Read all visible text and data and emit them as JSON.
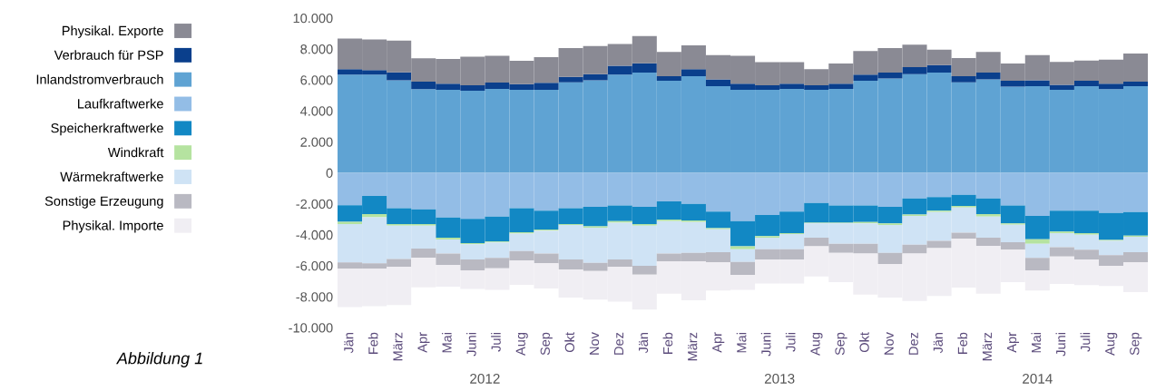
{
  "chart_data": {
    "type": "bar",
    "stacked": true,
    "legend": "left",
    "grid": false,
    "categories": [
      "Jän",
      "Feb",
      "März",
      "Apr",
      "Mai",
      "Juni",
      "Juli",
      "Aug",
      "Sep",
      "Okt",
      "Nov",
      "Dez",
      "Jän",
      "Feb",
      "März",
      "Apr",
      "Mai",
      "Juni",
      "Juli",
      "Aug",
      "Sep",
      "Okt",
      "Nov",
      "Dez",
      "Jän",
      "Feb",
      "März",
      "Apr",
      "Mai",
      "Juni",
      "Juli",
      "Aug",
      "Sep"
    ],
    "ylim": [
      -10000,
      10000
    ],
    "yticks": [
      {
        "value": -10000,
        "label": "-10.000"
      },
      {
        "value": -8000,
        "label": "-8.000"
      },
      {
        "value": -6000,
        "label": "-6.000"
      },
      {
        "value": -4000,
        "label": "-4.000"
      },
      {
        "value": -2000,
        "label": "-2.000"
      },
      0,
      {
        "value": 2000,
        "label": "2.000"
      },
      {
        "value": 4000,
        "label": "4.000"
      },
      {
        "value": 6000,
        "label": "6.000"
      },
      {
        "value": 8000,
        "label": "8.000"
      },
      {
        "value": 10000,
        "label": "10.000"
      }
    ],
    "annotations": [
      "2012",
      "2013",
      "2014",
      "Abbildung 1"
    ],
    "series": [
      {
        "name": "Inlandstromverbrauch",
        "color": "#5fa3d3",
        "values": [
          6340,
          6340,
          5980,
          5400,
          5360,
          5300,
          5420,
          5360,
          5360,
          5850,
          5980,
          6340,
          6470,
          5950,
          6240,
          5590,
          5360,
          5360,
          5420,
          5360,
          5420,
          5950,
          6100,
          6370,
          6470,
          5850,
          6040,
          5560,
          5590,
          5360,
          5590,
          5400,
          5590
        ]
      },
      {
        "name": "Verbrauch für PSP",
        "color": "#0a3f8c",
        "values": [
          350,
          290,
          510,
          490,
          390,
          350,
          410,
          370,
          450,
          350,
          390,
          580,
          610,
          290,
          450,
          450,
          390,
          290,
          330,
          290,
          330,
          390,
          370,
          450,
          490,
          390,
          430,
          390,
          390,
          330,
          360,
          350,
          300
        ]
      },
      {
        "name": "Physikal. Exporte",
        "color": "#8a8a94",
        "values": [
          1980,
          1990,
          2050,
          1500,
          1600,
          1850,
          1730,
          1500,
          1660,
          1850,
          1820,
          1400,
          1750,
          1560,
          1540,
          1560,
          1810,
          1500,
          1400,
          1040,
          1310,
          1520,
          1580,
          1460,
          990,
          1170,
          1330,
          1110,
          1620,
          1480,
          1300,
          1560,
          1810
        ]
      },
      {
        "name": "Laufkraftwerke",
        "color": "#93bde6",
        "values": [
          -2090,
          -1500,
          -2280,
          -2360,
          -2880,
          -2980,
          -2830,
          -2280,
          -2440,
          -2280,
          -2200,
          -2110,
          -2200,
          -1850,
          -2000,
          -2500,
          -3120,
          -2730,
          -2500,
          -1950,
          -2110,
          -2110,
          -2200,
          -1660,
          -1560,
          -1420,
          -1660,
          -2110,
          -2790,
          -2440,
          -2440,
          -2590,
          -2530
        ]
      },
      {
        "name": "Speicherkraftwerke",
        "color": "#1288c4",
        "values": [
          -1070,
          -1170,
          -1030,
          -950,
          -1310,
          -1560,
          -1610,
          -1560,
          -1220,
          -1030,
          -1250,
          -1010,
          -1110,
          -1170,
          -1080,
          -1070,
          -1620,
          -1360,
          -1400,
          -1270,
          -1110,
          -1070,
          -1070,
          -1030,
          -880,
          -720,
          -1010,
          -1150,
          -1500,
          -1360,
          -1460,
          -1740,
          -1520
        ]
      },
      {
        "name": "Windkraft",
        "color": "#b5e3a0",
        "values": [
          -150,
          -200,
          -100,
          -100,
          -120,
          -80,
          -60,
          -80,
          -80,
          -60,
          -100,
          -100,
          -100,
          -100,
          -100,
          -80,
          -190,
          -100,
          -60,
          -50,
          -50,
          -80,
          -100,
          -100,
          -90,
          -100,
          -160,
          -90,
          -290,
          -100,
          -100,
          -60,
          -80
        ]
      },
      {
        "name": "Wärmekraftwerke",
        "color": "#cfe3f5",
        "values": [
          -2480,
          -2980,
          -2150,
          -1480,
          -910,
          -970,
          -1000,
          -1130,
          -1480,
          -2220,
          -2260,
          -2370,
          -2590,
          -2100,
          -1990,
          -1480,
          -820,
          -740,
          -970,
          -920,
          -1310,
          -1320,
          -1800,
          -1850,
          -1860,
          -1620,
          -1360,
          -1130,
          -920,
          -910,
          -970,
          -930,
          -1000
        ]
      },
      {
        "name": "Sonstige Erzeugung",
        "color": "#b9b9c2",
        "values": [
          -410,
          -330,
          -500,
          -610,
          -730,
          -710,
          -660,
          -620,
          -630,
          -650,
          -530,
          -470,
          -570,
          -490,
          -540,
          -660,
          -840,
          -660,
          -660,
          -550,
          -590,
          -640,
          -720,
          -580,
          -480,
          -390,
          -530,
          -490,
          -800,
          -590,
          -620,
          -680,
          -660
        ]
      },
      {
        "name": "Physikal. Importe",
        "color": "#f0eef3",
        "values": [
          -2470,
          -2440,
          -2480,
          -1890,
          -1400,
          -1200,
          -1400,
          -1560,
          -1620,
          -1810,
          -1850,
          -2260,
          -2260,
          -2090,
          -2520,
          -1810,
          -970,
          -1560,
          -1560,
          -1950,
          -1890,
          -2640,
          -2160,
          -3060,
          -3080,
          -3160,
          -3080,
          -2090,
          -1300,
          -1770,
          -1660,
          -1310,
          -1910
        ]
      }
    ]
  }
}
